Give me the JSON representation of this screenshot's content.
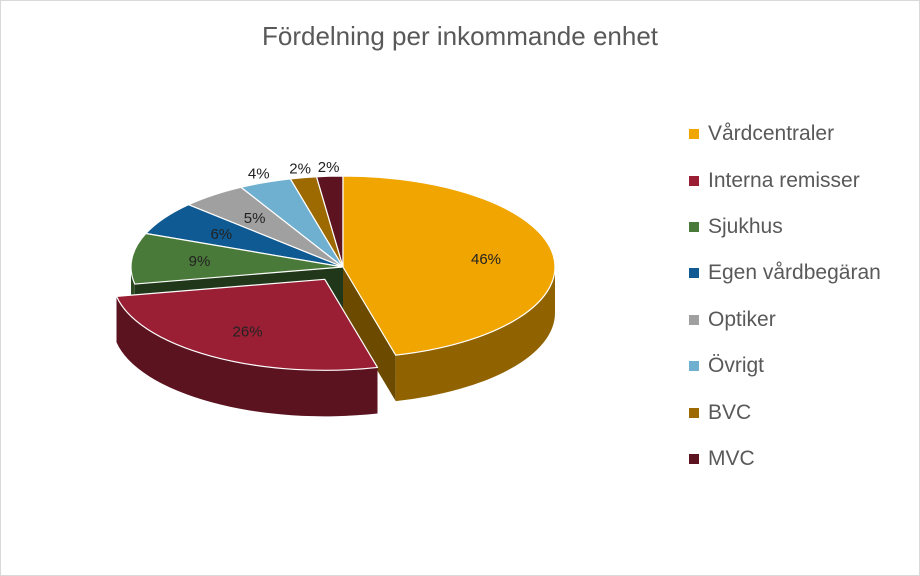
{
  "chart_data": {
    "type": "pie",
    "title": "Fördelning per inkommande enhet",
    "legend_position": "right",
    "categories": [
      "Vårdcentraler",
      "Interna remisser",
      "Sjukhus",
      "Egen vårdbegäran",
      "Optiker",
      "Övrigt",
      "BVC",
      "MVC"
    ],
    "values": [
      46,
      26,
      9,
      6,
      5,
      4,
      2,
      2
    ],
    "labels": [
      "46%",
      "26%",
      "9%",
      "6%",
      "5%",
      "4%",
      "2%",
      "2%"
    ],
    "colors": [
      "#F0A500",
      "#9A1F35",
      "#4A7A39",
      "#0F5A92",
      "#A0A0A0",
      "#6FB0D1",
      "#9C6A00",
      "#5E1420"
    ],
    "exploded": "Interna remisser"
  }
}
